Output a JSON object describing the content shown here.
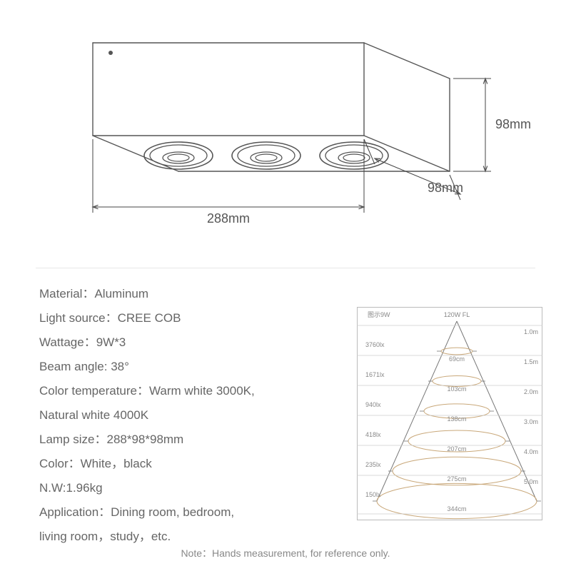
{
  "drawing": {
    "width_label": "288mm",
    "depth_label": "98mm",
    "height_label": "98mm",
    "stroke": "#555555",
    "dim_stroke": "#444444"
  },
  "specs": [
    {
      "label": "Material",
      "value": "Aluminum"
    },
    {
      "label": "Light source",
      "value": "CREE COB"
    },
    {
      "label": "Wattage",
      "value": "9W*3"
    },
    {
      "label": "Beam angle",
      "value": "38°"
    },
    {
      "label": "Color temperature",
      "value": "Warm white 3000K,"
    },
    {
      "label": "Natural white 4000K",
      "value": ""
    },
    {
      "label": "Lamp size",
      "value": "288*98*98mm"
    },
    {
      "label": "Color",
      "value": "White，black"
    },
    {
      "label": "N.W",
      "value": "1.96kg"
    },
    {
      "label": "Application",
      "value": "Dining room, bedroom,"
    },
    {
      "label": "living room，study，etc.",
      "value": ""
    }
  ],
  "beam": {
    "header_left": "图示9W",
    "header_right": "120W  FL",
    "rows": [
      {
        "lux": "3760lx",
        "cm": "69cm",
        "m": "1.0m",
        "rx": 22
      },
      {
        "lux": "1671lx",
        "cm": "103cm",
        "m": "1.5m",
        "rx": 34
      },
      {
        "lux": "940lx",
        "cm": "138cm",
        "m": "2.0m",
        "rx": 46
      },
      {
        "lux": "418lx",
        "cm": "207cm",
        "m": "3.0m",
        "rx": 68
      },
      {
        "lux": "235lx",
        "cm": "275cm",
        "m": "4.0m",
        "rx": 90
      },
      {
        "lux": "150lx",
        "cm": "344cm",
        "m": "5.0m",
        "rx": 112
      }
    ],
    "ellipse_color": "#c9a87a",
    "line_color": "#cccccc",
    "text_color": "#888888",
    "border_color": "#bbbbbb"
  },
  "note": "Note：Hands measurement, for reference only."
}
